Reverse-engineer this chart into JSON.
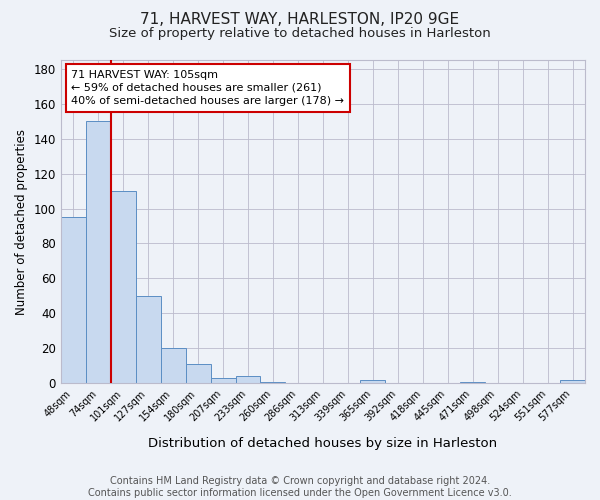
{
  "title": "71, HARVEST WAY, HARLESTON, IP20 9GE",
  "subtitle": "Size of property relative to detached houses in Harleston",
  "xlabel": "Distribution of detached houses by size in Harleston",
  "ylabel": "Number of detached properties",
  "categories": [
    "48sqm",
    "74sqm",
    "101sqm",
    "127sqm",
    "154sqm",
    "180sqm",
    "207sqm",
    "233sqm",
    "260sqm",
    "286sqm",
    "313sqm",
    "339sqm",
    "365sqm",
    "392sqm",
    "418sqm",
    "445sqm",
    "471sqm",
    "498sqm",
    "524sqm",
    "551sqm",
    "577sqm"
  ],
  "values": [
    95,
    150,
    110,
    50,
    20,
    11,
    3,
    4,
    1,
    0,
    0,
    0,
    2,
    0,
    0,
    0,
    1,
    0,
    0,
    0,
    2
  ],
  "bar_color": "#c8d9ef",
  "bar_edge_color": "#5b8ec4",
  "ref_line_x": 1.5,
  "ref_line_color": "#cc0000",
  "annotation_text": "71 HARVEST WAY: 105sqm\n← 59% of detached houses are smaller (261)\n40% of semi-detached houses are larger (178) →",
  "annotation_box_color": "#ffffff",
  "annotation_box_edge": "#cc0000",
  "ylim": [
    0,
    185
  ],
  "yticks": [
    0,
    20,
    40,
    60,
    80,
    100,
    120,
    140,
    160,
    180
  ],
  "footer": "Contains HM Land Registry data © Crown copyright and database right 2024.\nContains public sector information licensed under the Open Government Licence v3.0.",
  "bg_color": "#eef2f8",
  "plot_bg_color": "#eef2f8",
  "title_fontsize": 11,
  "subtitle_fontsize": 9.5,
  "footer_fontsize": 7
}
